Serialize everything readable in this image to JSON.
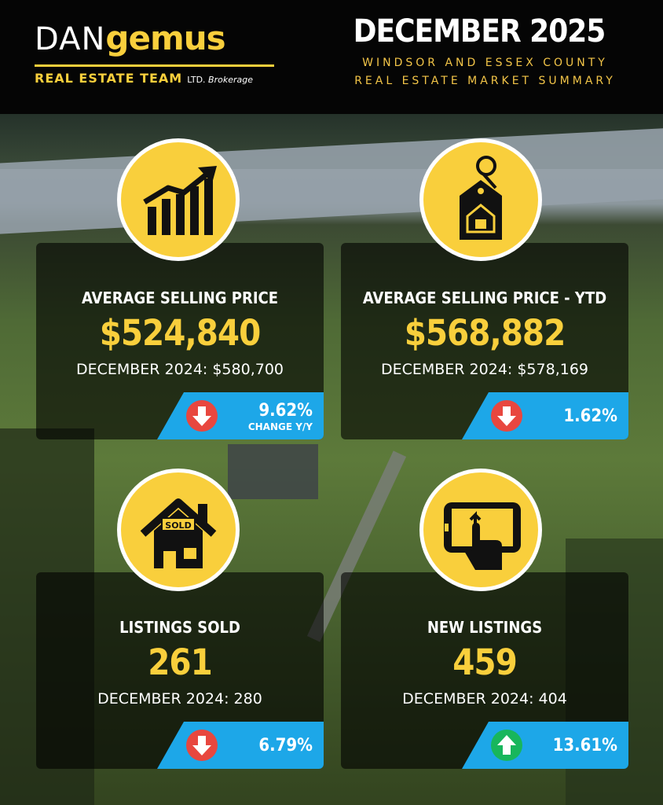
{
  "brand": {
    "logo_dan": "DAN",
    "logo_gemus": "gemus",
    "logo_team": "REAL ESTATE TEAM",
    "logo_ltd": "LTD.",
    "logo_brokerage": "Brokerage"
  },
  "header": {
    "title": "DECEMBER 2025",
    "subtitle_line1": "WINDSOR AND ESSEX COUNTY",
    "subtitle_line2": "REAL ESTATE MARKET SUMMARY"
  },
  "colors": {
    "accent_yellow": "#f9cf3c",
    "band_blue": "#1da7e8",
    "down_red": "#e8473f",
    "up_green": "#18b65c"
  },
  "stats": [
    {
      "icon": "growth-chart-icon",
      "label": "AVERAGE SELLING PRICE",
      "value": "$524,840",
      "previous": "DECEMBER 2024: $580,700",
      "direction": "down",
      "change": "9.62%",
      "change_note": "CHANGE Y/Y"
    },
    {
      "icon": "price-tag-house-icon",
      "label": "AVERAGE SELLING PRICE - YTD",
      "value": "$568,882",
      "previous": "DECEMBER 2024: $578,169",
      "direction": "down",
      "change": "1.62%"
    },
    {
      "icon": "sold-house-icon",
      "label": "LISTINGS SOLD",
      "sold_sign": "SOLD",
      "value": "261",
      "previous": "DECEMBER 2024: 280",
      "direction": "down",
      "change": "6.79%"
    },
    {
      "icon": "tablet-tap-icon",
      "label": "NEW LISTINGS",
      "value": "459",
      "previous": "DECEMBER 2024: 404",
      "direction": "up",
      "change": "13.61%"
    }
  ]
}
